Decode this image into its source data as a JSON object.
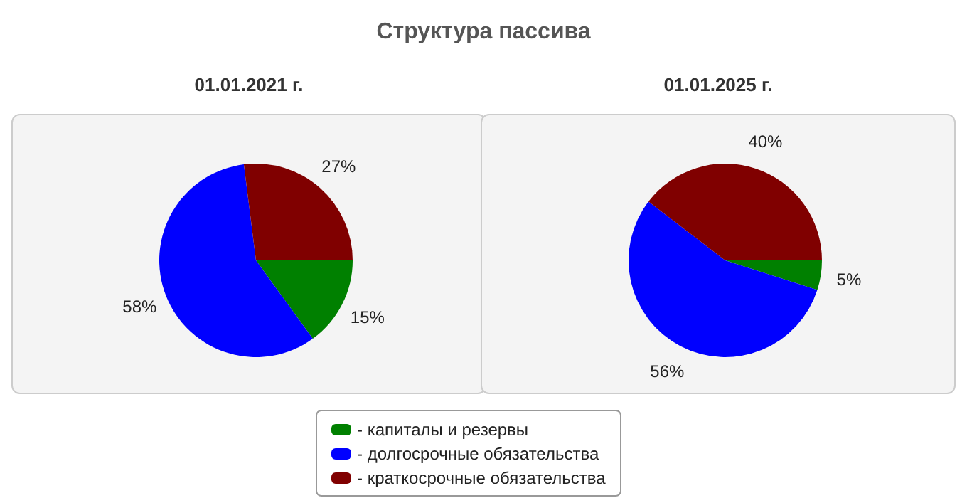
{
  "chart_data": [
    {
      "type": "pie",
      "title": "Структура пассива",
      "subtitle": "01.01.2021 г.",
      "categories": [
        "- капиталы и резервы",
        "- долгосрочные обязательства",
        "- краткосрочные обязательства"
      ],
      "values": [
        15,
        58,
        27
      ],
      "value_labels": [
        "15%",
        "58%",
        "27%"
      ],
      "colors": [
        "#008000",
        "#0000ff",
        "#800000"
      ],
      "legend": "bottom"
    },
    {
      "type": "pie",
      "subtitle": "01.01.2025 г.",
      "values": [
        5,
        56,
        40
      ],
      "value_labels": [
        "5%",
        "56%",
        "40%"
      ],
      "colors": [
        "#008000",
        "#0000ff",
        "#800000"
      ]
    }
  ]
}
